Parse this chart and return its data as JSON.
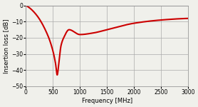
{
  "title": "",
  "xlabel": "Frequency [MHz]",
  "ylabel": "Insertion loss [dB]",
  "xlim": [
    0,
    3000
  ],
  "ylim": [
    -50,
    0
  ],
  "xticks": [
    0,
    500,
    1000,
    1500,
    2000,
    2500,
    3000
  ],
  "yticks": [
    0,
    -10,
    -20,
    -30,
    -40,
    -50
  ],
  "line_color": "#cc0000",
  "line_width": 1.5,
  "grid_color": "#aaaaaa",
  "bg_color": "#f0f0eb",
  "key_points_f": [
    0,
    50,
    200,
    400,
    500,
    550,
    580,
    610,
    650,
    700,
    800,
    1000,
    1250,
    1500,
    2000,
    2500,
    3000
  ],
  "key_points_il": [
    0,
    -1,
    -6,
    -18,
    -28,
    -36,
    -43,
    -36,
    -25,
    -20,
    -15,
    -18,
    -17,
    -15,
    -11,
    -9,
    -8
  ]
}
